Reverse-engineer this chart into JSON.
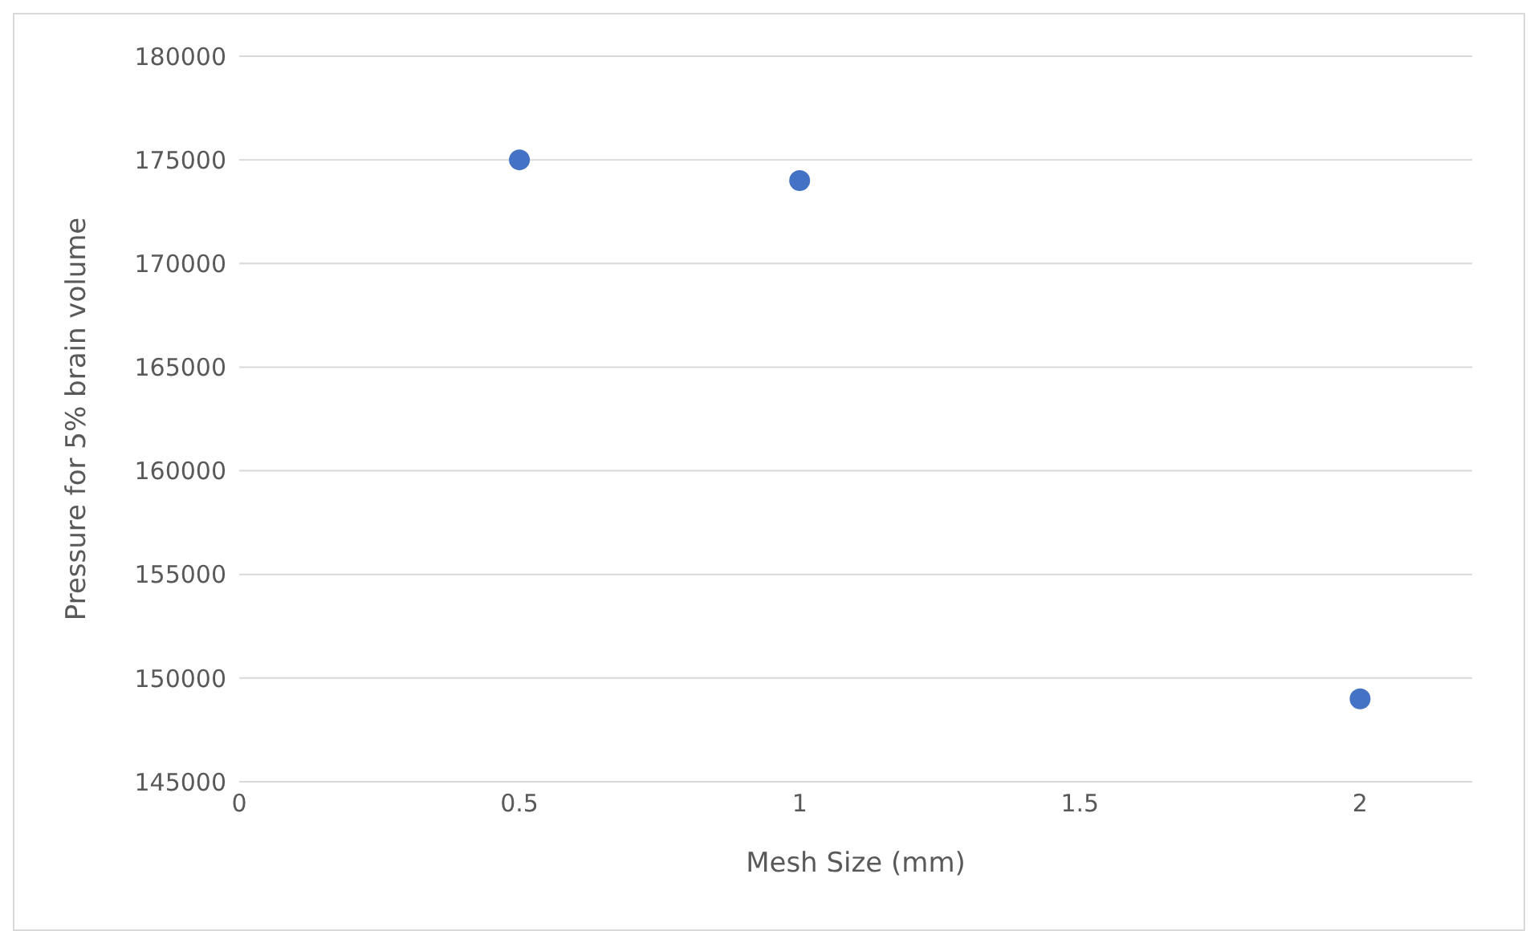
{
  "chart_data": {
    "type": "scatter",
    "xlabel": "Mesh Size (mm)",
    "ylabel": "Pressure for 5% brain volume",
    "x": [
      0.5,
      1,
      2
    ],
    "series": [
      {
        "color": "#4472c4",
        "values": [
          175000,
          174000,
          149000
        ]
      }
    ],
    "xlim": [
      0,
      2.2
    ],
    "xticks": [
      0,
      0.5,
      1,
      1.5,
      2
    ],
    "ylim": [
      145000,
      180000
    ],
    "yticks": [
      145000,
      150000,
      155000,
      160000,
      165000,
      170000,
      175000,
      180000
    ],
    "grid": "y",
    "legend": false,
    "marker": "circle"
  }
}
